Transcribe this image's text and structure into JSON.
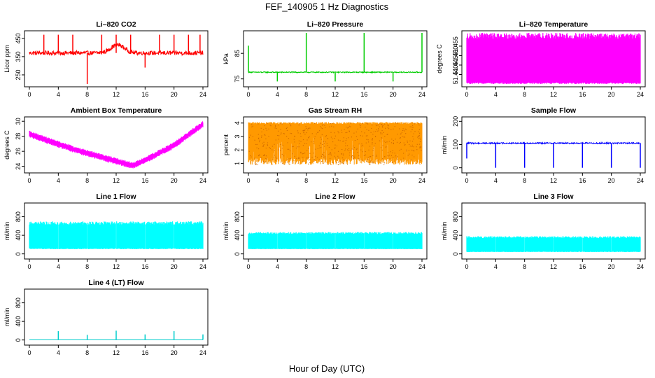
{
  "figure": {
    "title": "FEF_140905  1 Hz Diagnostics",
    "xlabel": "Hour of Day (UTC)"
  },
  "chart_data": [
    {
      "type": "line",
      "title": "Li–820 CO2",
      "ylabel": "Licor ppm",
      "xlim": [
        0,
        24
      ],
      "xticks": [
        "0",
        "4",
        "8",
        "12",
        "16",
        "20",
        "24"
      ],
      "ylim": [
        200,
        480
      ],
      "yticks": [
        250,
        350,
        450
      ],
      "series": [
        {
          "color": "#ff0000",
          "baseline": 370,
          "noise": 12,
          "mode": "co2",
          "hump": {
            "center": 12.2,
            "width": 1.3,
            "height": 45
          },
          "spikes": [
            {
              "x": 2,
              "y": 470
            },
            {
              "x": 4,
              "y": 470
            },
            {
              "x": 6,
              "y": 470
            },
            {
              "x": 8,
              "y": 200
            },
            {
              "x": 10,
              "y": 470
            },
            {
              "x": 12,
              "y": 470
            },
            {
              "x": 14,
              "y": 470
            },
            {
              "x": 16,
              "y": 290
            },
            {
              "x": 18,
              "y": 470
            },
            {
              "x": 20,
              "y": 470
            },
            {
              "x": 22,
              "y": 470
            },
            {
              "x": 23.6,
              "y": 470
            }
          ]
        }
      ]
    },
    {
      "type": "line",
      "title": "Li–820 Pressure",
      "ylabel": "kPa",
      "xlim": [
        0,
        24
      ],
      "xticks": [
        "0",
        "4",
        "8",
        "12",
        "16",
        "20",
        "24"
      ],
      "ylim": [
        73,
        93
      ],
      "yticks": [
        75,
        85
      ],
      "series": [
        {
          "color": "#00cc00",
          "baseline": 77.6,
          "noise": 0.2,
          "mode": "pressure",
          "spikes": [
            {
              "x": 0,
              "y": 88
            },
            {
              "x": 4,
              "y": 74
            },
            {
              "x": 8,
              "y": 93
            },
            {
              "x": 12,
              "y": 74
            },
            {
              "x": 16,
              "y": 93
            },
            {
              "x": 20,
              "y": 74
            },
            {
              "x": 24,
              "y": 93
            }
          ]
        }
      ]
    },
    {
      "type": "area",
      "title": "Li–820 Temperature",
      "ylabel": "degrees C",
      "xlim": [
        0,
        24
      ],
      "xticks": [
        "0",
        "4",
        "8",
        "12",
        "16",
        "20",
        "24"
      ],
      "ylim": [
        51.435,
        51.462
      ],
      "yticks": [
        51.44,
        51.445,
        51.45,
        51.455
      ],
      "series": [
        {
          "color": "#ff00ff",
          "min": 51.435,
          "max": 51.462
        }
      ]
    },
    {
      "type": "line",
      "title": "Ambient Box Temperature",
      "ylabel": "degrees C",
      "xlim": [
        0,
        24
      ],
      "xticks": [
        "0",
        "4",
        "8",
        "12",
        "16",
        "20",
        "24"
      ],
      "ylim": [
        23.5,
        30.3
      ],
      "yticks": [
        24,
        26,
        28,
        30
      ],
      "series": [
        {
          "color": "#ff00ff",
          "noise": 0.45,
          "mode": "band",
          "points": [
            [
              0,
              28.3
            ],
            [
              2,
              27.6
            ],
            [
              6,
              26.3
            ],
            [
              10,
              25.2
            ],
            [
              14.3,
              24.1
            ],
            [
              16,
              24.8
            ],
            [
              20,
              26.8
            ],
            [
              24,
              29.6
            ]
          ]
        }
      ]
    },
    {
      "type": "line",
      "title": "Gas Stream RH",
      "ylabel": "percent",
      "xlim": [
        0,
        24
      ],
      "xticks": [
        "0",
        "4",
        "8",
        "12",
        "16",
        "20",
        "24"
      ],
      "ylim": [
        0.5,
        4.3
      ],
      "yticks": [
        1,
        2,
        3,
        4
      ],
      "series": [
        {
          "color": "#ff9900",
          "mode": "rh",
          "top": 4.0,
          "bottom": 0.9
        }
      ]
    },
    {
      "type": "line",
      "title": "Sample Flow",
      "ylabel": "ml/min",
      "xlim": [
        0,
        24
      ],
      "xticks": [
        "0",
        "4",
        "8",
        "12",
        "16",
        "20",
        "24"
      ],
      "ylim": [
        -10,
        210
      ],
      "yticks": [
        0,
        100,
        200
      ],
      "series": [
        {
          "color": "#0000ff",
          "baseline": 106,
          "noise": 3,
          "mode": "flow",
          "dips": [
            {
              "x": 0,
              "y": 40
            },
            {
              "x": 4,
              "y": 0
            },
            {
              "x": 8,
              "y": 0
            },
            {
              "x": 12,
              "y": 0
            },
            {
              "x": 16,
              "y": 0
            },
            {
              "x": 20,
              "y": 0
            },
            {
              "x": 24,
              "y": 0
            }
          ]
        }
      ]
    },
    {
      "type": "area",
      "title": "Line 1 Flow",
      "ylabel": "ml/min",
      "xlim": [
        0,
        24
      ],
      "xticks": [
        "0",
        "4",
        "8",
        "12",
        "16",
        "20",
        "24"
      ],
      "ylim": [
        -50,
        1050
      ],
      "yticks": [
        0,
        400,
        800
      ],
      "series": [
        {
          "color": "#00ffff",
          "min": 100,
          "max": 700,
          "gaps": [
            4,
            8,
            12,
            16,
            20
          ]
        }
      ]
    },
    {
      "type": "area",
      "title": "Line 2 Flow",
      "ylabel": "ml/min",
      "xlim": [
        0,
        24
      ],
      "xticks": [
        "0",
        "4",
        "8",
        "12",
        "16",
        "20",
        "24"
      ],
      "ylim": [
        -50,
        1050
      ],
      "yticks": [
        0,
        400,
        800
      ],
      "series": [
        {
          "color": "#00ffff",
          "min": 100,
          "max": 470,
          "gaps": [
            4,
            8,
            12,
            16,
            20
          ]
        }
      ]
    },
    {
      "type": "area",
      "title": "Line 3 Flow",
      "ylabel": "ml/min",
      "xlim": [
        0,
        24
      ],
      "xticks": [
        "0",
        "4",
        "8",
        "12",
        "16",
        "20",
        "24"
      ],
      "ylim": [
        -50,
        1050
      ],
      "yticks": [
        0,
        400,
        800
      ],
      "series": [
        {
          "color": "#00ffff",
          "min": 40,
          "max": 380,
          "gaps": [
            4,
            8,
            12,
            16,
            20
          ]
        }
      ]
    },
    {
      "type": "line",
      "title": "Line 4 (LT) Flow",
      "ylabel": "ml/min",
      "xlim": [
        0,
        24
      ],
      "xticks": [
        "0",
        "4",
        "8",
        "12",
        "16",
        "20",
        "24"
      ],
      "ylim": [
        -50,
        1050
      ],
      "yticks": [
        0,
        400,
        800
      ],
      "series": [
        {
          "color": "#00cccc",
          "baseline": 5,
          "mode": "flat",
          "spikes": [
            {
              "x": 4,
              "y": 190
            },
            {
              "x": 8,
              "y": 110
            },
            {
              "x": 12,
              "y": 200
            },
            {
              "x": 16,
              "y": 120
            },
            {
              "x": 20,
              "y": 190
            },
            {
              "x": 24,
              "y": 120
            }
          ]
        }
      ]
    }
  ]
}
